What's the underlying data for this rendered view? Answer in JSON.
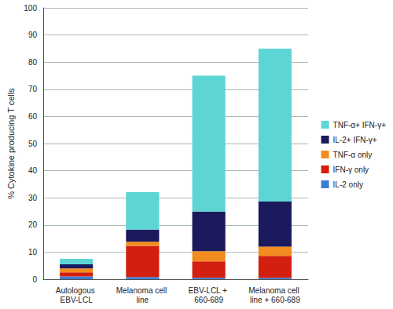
{
  "chart_data": {
    "type": "bar",
    "stacked": true,
    "orientation": "vertical",
    "y_label": "% Cytokine producing T cells",
    "categories": [
      "Autologous EBV-LCL",
      "Melanoma cell line",
      "EBV-LCL + 660-689",
      "Melanoma cell line + 660-689"
    ],
    "series": [
      {
        "name": "IL-2 only",
        "color": "#3a7fd5",
        "values": [
          1.0,
          0.8,
          0.5,
          0.5
        ]
      },
      {
        "name": "IFN-γ only",
        "color": "#d21f0f",
        "values": [
          1.5,
          11.5,
          6.1,
          8.1
        ]
      },
      {
        "name": "TNF-α only",
        "color": "#f28c1e",
        "values": [
          1.5,
          1.5,
          3.7,
          3.4
        ]
      },
      {
        "name": "IL-2+ IFN-γ+",
        "color": "#1a1a5c",
        "values": [
          1.5,
          4.5,
          14.6,
          16.6
        ]
      },
      {
        "name": "TNF-α+ IFN-γ+",
        "color": "#5ed5d5",
        "values": [
          2.0,
          13.8,
          50.1,
          56.4
        ]
      }
    ],
    "ylim": [
      0,
      100
    ],
    "yticks": [
      0,
      10,
      20,
      30,
      40,
      50,
      60,
      70,
      80,
      90,
      100
    ],
    "grid": true,
    "legend": "right"
  }
}
